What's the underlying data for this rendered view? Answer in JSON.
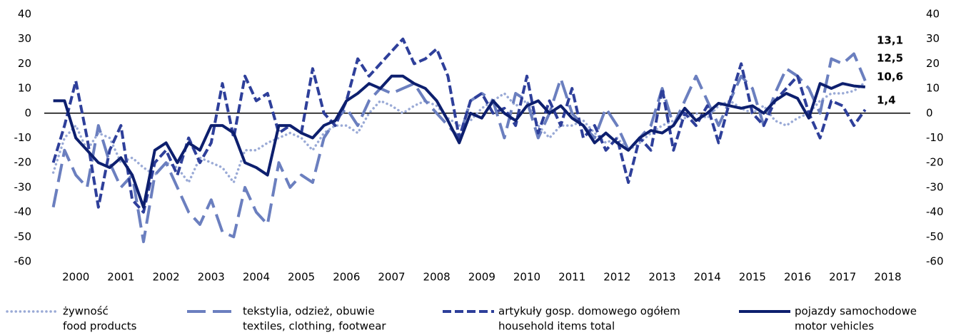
{
  "chart_data": {
    "type": "line",
    "x": [
      2000,
      2000.25,
      2000.5,
      2000.75,
      2001,
      2001.25,
      2001.5,
      2001.75,
      2002,
      2002.25,
      2002.5,
      2002.75,
      2003,
      2003.25,
      2003.5,
      2003.75,
      2004,
      2004.25,
      2004.5,
      2004.75,
      2005,
      2005.25,
      2005.5,
      2005.75,
      2006,
      2006.25,
      2006.5,
      2006.75,
      2007,
      2007.25,
      2007.5,
      2007.75,
      2008,
      2008.25,
      2008.5,
      2008.75,
      2009,
      2009.25,
      2009.5,
      2009.75,
      2010,
      2010.25,
      2010.5,
      2010.75,
      2011,
      2011.25,
      2011.5,
      2011.75,
      2012,
      2012.25,
      2012.5,
      2012.75,
      2013,
      2013.25,
      2013.5,
      2013.75,
      2014,
      2014.25,
      2014.5,
      2014.75,
      2015,
      2015.25,
      2015.5,
      2015.75,
      2016,
      2016.25,
      2016.5,
      2016.75,
      2017,
      2017.25,
      2017.5,
      2017.75,
      2018
    ],
    "xlim": [
      1999.8,
      2019
    ],
    "xticks": [
      2000,
      2001,
      2002,
      2003,
      2004,
      2005,
      2006,
      2007,
      2008,
      2009,
      2010,
      2011,
      2012,
      2013,
      2014,
      2015,
      2016,
      2017,
      2018
    ],
    "ylim": [
      -60,
      40
    ],
    "yticks": [
      -60,
      -50,
      -40,
      -30,
      -20,
      -10,
      0,
      10,
      20,
      30,
      40
    ],
    "y2lim": [
      -60,
      40
    ],
    "y2ticks": [
      -60,
      -50,
      -40,
      -30,
      -20,
      -10,
      0,
      10,
      20,
      30,
      40
    ],
    "series": [
      {
        "name": [
          "żywność",
          "food products"
        ],
        "color": "#9aaad6",
        "style": "dotted",
        "values": [
          -24,
          -10,
          -5,
          -15,
          -8,
          -10,
          -20,
          -18,
          -22,
          -25,
          -20,
          -22,
          -28,
          -18,
          -20,
          -22,
          -28,
          -15,
          -15,
          -12,
          -10,
          -8,
          -10,
          -15,
          -8,
          -5,
          -5,
          -8,
          0,
          5,
          3,
          0,
          3,
          5,
          3,
          -2,
          -5,
          -3,
          2,
          5,
          8,
          3,
          5,
          -5,
          -10,
          -5,
          -5,
          -3,
          -8,
          -12,
          -10,
          -15,
          -12,
          -8,
          -5,
          -3,
          -2,
          0,
          -2,
          3,
          5,
          2,
          0,
          3,
          -3,
          -5,
          -2,
          0,
          5,
          8,
          8,
          9,
          12.5
        ],
        "value_labels": [
          null,
          null,
          null,
          null,
          null,
          null,
          null,
          null,
          null,
          null,
          null,
          null,
          null,
          null,
          null,
          null,
          null,
          null,
          null,
          null,
          null,
          null,
          null,
          null,
          null,
          null,
          null,
          null,
          null,
          null,
          null,
          null,
          null,
          null,
          null,
          null,
          null,
          null,
          null,
          null,
          null,
          null,
          null,
          null,
          null,
          null,
          null,
          null,
          null,
          null,
          null,
          null,
          null,
          null,
          null,
          null,
          null,
          null,
          null,
          null,
          null,
          null,
          null,
          null,
          null,
          null,
          null,
          null,
          null,
          null,
          null,
          null,
          "12,5"
        ]
      },
      {
        "name": [
          "tekstylia, odzież, obuwie",
          "textiles, clothing, footwear"
        ],
        "color": "#6b7fbf",
        "style": "longdash",
        "values": [
          -38,
          -15,
          -25,
          -30,
          -5,
          -20,
          -30,
          -25,
          -52,
          -25,
          -20,
          -30,
          -40,
          -45,
          -35,
          -48,
          -50,
          -30,
          -40,
          -45,
          -20,
          -30,
          -25,
          -28,
          -10,
          -3,
          2,
          -5,
          5,
          10,
          8,
          10,
          12,
          5,
          0,
          -5,
          -10,
          5,
          8,
          5,
          -10,
          8,
          5,
          -10,
          0,
          14,
          0,
          -5,
          -10,
          2,
          -5,
          -15,
          -10,
          -5,
          10,
          -5,
          5,
          15,
          5,
          -5,
          5,
          15,
          10,
          -5,
          8,
          18,
          15,
          10,
          0,
          22,
          20,
          24,
          13.1
        ],
        "value_labels": [
          null,
          null,
          null,
          null,
          null,
          null,
          null,
          null,
          null,
          null,
          null,
          null,
          null,
          null,
          null,
          null,
          null,
          null,
          null,
          null,
          null,
          null,
          null,
          null,
          null,
          null,
          null,
          null,
          null,
          null,
          null,
          null,
          null,
          null,
          null,
          null,
          null,
          null,
          null,
          null,
          null,
          null,
          null,
          null,
          null,
          null,
          null,
          null,
          null,
          null,
          null,
          null,
          null,
          null,
          null,
          null,
          null,
          null,
          null,
          null,
          null,
          null,
          null,
          null,
          null,
          null,
          null,
          null,
          null,
          null,
          null,
          null,
          "13,1"
        ]
      },
      {
        "name": [
          "artykuły gosp. domowego ogółem",
          "household items total"
        ],
        "color": "#2e3f9a",
        "style": "dashed",
        "values": [
          -20,
          -5,
          13,
          -10,
          -38,
          -15,
          -5,
          -35,
          -40,
          -20,
          -15,
          -25,
          -10,
          -20,
          -12,
          12,
          -10,
          15,
          5,
          8,
          -8,
          -5,
          -8,
          18,
          0,
          -5,
          5,
          22,
          15,
          20,
          25,
          30,
          20,
          22,
          26,
          15,
          -10,
          5,
          8,
          0,
          2,
          -5,
          15,
          -8,
          5,
          -5,
          10,
          -10,
          -5,
          -15,
          -10,
          -28,
          -10,
          -15,
          10,
          -15,
          0,
          -5,
          3,
          -12,
          5,
          20,
          0,
          -5,
          5,
          10,
          15,
          0,
          -10,
          5,
          3,
          -5,
          1.4
        ],
        "value_labels": [
          null,
          null,
          null,
          null,
          null,
          null,
          null,
          null,
          null,
          null,
          null,
          null,
          null,
          null,
          null,
          null,
          null,
          null,
          null,
          null,
          null,
          null,
          null,
          null,
          null,
          null,
          null,
          null,
          null,
          null,
          null,
          null,
          null,
          null,
          null,
          null,
          null,
          null,
          null,
          null,
          null,
          null,
          null,
          null,
          null,
          null,
          null,
          null,
          null,
          null,
          null,
          null,
          null,
          null,
          null,
          null,
          null,
          null,
          null,
          null,
          null,
          null,
          null,
          null,
          null,
          null,
          null,
          null,
          null,
          null,
          null,
          null,
          "1,4"
        ]
      },
      {
        "name": [
          "pojazdy samochodowe",
          "motor vehicles"
        ],
        "color": "#0d1f6e",
        "style": "solid",
        "values": [
          5,
          5,
          -10,
          -15,
          -20,
          -22,
          -18,
          -25,
          -38,
          -15,
          -12,
          -20,
          -12,
          -15,
          -5,
          -5,
          -8,
          -20,
          -22,
          -25,
          -5,
          -5,
          -8,
          -10,
          -5,
          -3,
          5,
          8,
          12,
          10,
          15,
          15,
          12,
          10,
          5,
          -3,
          -12,
          0,
          -2,
          5,
          0,
          -3,
          3,
          5,
          0,
          3,
          -2,
          -5,
          -12,
          -8,
          -12,
          -15,
          -10,
          -7,
          -8,
          -5,
          2,
          -3,
          0,
          4,
          3,
          2,
          3,
          0,
          5,
          8,
          6,
          -2,
          12,
          10,
          12,
          11,
          10.6
        ],
        "value_labels": [
          null,
          null,
          null,
          null,
          null,
          null,
          null,
          null,
          null,
          null,
          null,
          null,
          null,
          null,
          null,
          null,
          null,
          null,
          null,
          null,
          null,
          null,
          null,
          null,
          null,
          null,
          null,
          null,
          null,
          null,
          null,
          null,
          null,
          null,
          null,
          null,
          null,
          null,
          null,
          null,
          null,
          null,
          null,
          null,
          null,
          null,
          null,
          null,
          null,
          null,
          null,
          null,
          null,
          null,
          null,
          null,
          null,
          null,
          null,
          null,
          null,
          null,
          null,
          null,
          null,
          null,
          null,
          null,
          null,
          null,
          null,
          null,
          "10,6"
        ]
      }
    ]
  }
}
